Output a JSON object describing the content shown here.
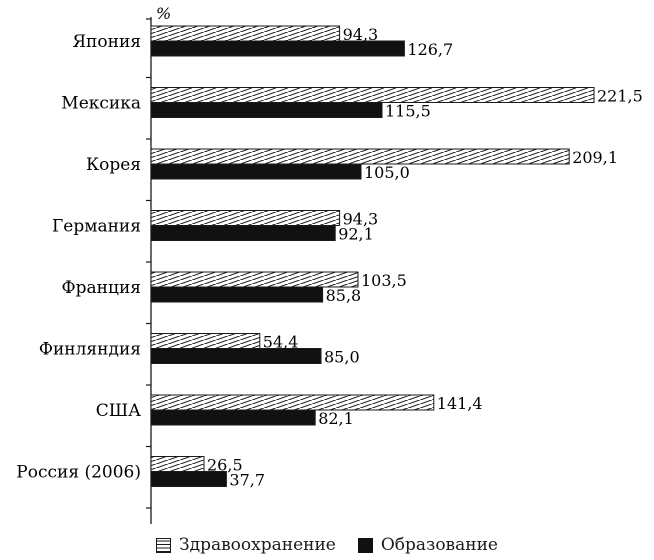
{
  "chart_data": {
    "type": "bar",
    "orientation": "horizontal",
    "unit": "%",
    "title": "",
    "xlabel": "",
    "ylabel": "",
    "categories": [
      "Япония",
      "Мексика",
      "Корея",
      "Германия",
      "Франция",
      "Финляндия",
      "США",
      "Россия (2006)"
    ],
    "series": [
      {
        "name": "Здравоохранение",
        "values": [
          94.3,
          221.5,
          209.1,
          94.3,
          103.5,
          54.4,
          141.4,
          26.5
        ],
        "labels": [
          "94,3",
          "221,5",
          "209,1",
          "94,3",
          "103,5",
          "54,4",
          "141,4",
          "26,5"
        ],
        "fill": "hatched"
      },
      {
        "name": "Образование",
        "values": [
          126.7,
          115.5,
          105.0,
          92.1,
          85.8,
          85.0,
          82.1,
          37.7
        ],
        "labels": [
          "126,7",
          "115,5",
          "105,0",
          "92,1",
          "85,8",
          "85,0",
          "82,1",
          "37,7"
        ],
        "fill": "solid"
      }
    ],
    "xlim": [
      0,
      221.5
    ],
    "grid": false,
    "legend_position": "bottom-center",
    "colors": {
      "ink": "#1a1a1a",
      "solid": "#111111",
      "background": "#ffffff"
    }
  }
}
